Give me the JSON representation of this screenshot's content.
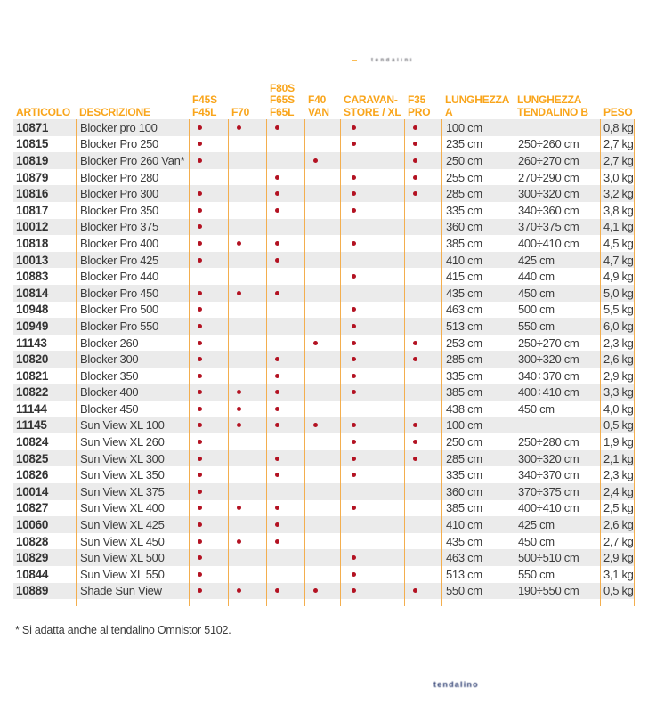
{
  "colors": {
    "accent": "#F9A51B",
    "border": "#F3AE4E",
    "dot": "#B31222",
    "row_alt": "#EBEBEB",
    "text": "#3B3B3B"
  },
  "page": {
    "top_note": {
      "text": "tendalini"
    },
    "bottom_note": {
      "text": "tendalino"
    },
    "footnote": "* Si adatta anche al tendalino Omnistor 5102."
  },
  "table": {
    "columns": [
      {
        "id": "articolo",
        "label_lines": [
          "ARTICOLO"
        ]
      },
      {
        "id": "descrizione",
        "label_lines": [
          "DESCRIZIONE"
        ]
      },
      {
        "id": "f45s-f45l",
        "label_lines": [
          "F45S",
          "F45L"
        ]
      },
      {
        "id": "f70",
        "label_lines": [
          "F70"
        ]
      },
      {
        "id": "f80s-f65s-f65l",
        "label_lines": [
          "F80S",
          "F65S",
          "F65L"
        ]
      },
      {
        "id": "f40-van",
        "label_lines": [
          "F40",
          "VAN"
        ]
      },
      {
        "id": "caravanstore-xl",
        "label_lines": [
          "CARAVAN-",
          "STORE / XL"
        ]
      },
      {
        "id": "f35-pro",
        "label_lines": [
          "F35",
          "PRO"
        ]
      },
      {
        "id": "lunghezza-a",
        "label_lines": [
          "LUNGHEZZA",
          "A"
        ]
      },
      {
        "id": "lunghezza-tendalino-b",
        "label_lines": [
          "LUNGHEZZA",
          "TENDALINO B"
        ]
      },
      {
        "id": "peso",
        "label_lines": [
          "PESO"
        ]
      }
    ],
    "dot_column_ids": [
      "f45s-f45l",
      "f70",
      "f80s-f65s-f65l",
      "f40-van",
      "caravanstore-xl",
      "f35-pro"
    ],
    "rows": [
      {
        "articolo": "10871",
        "descrizione": "Blocker pro 100",
        "dots": [
          1,
          1,
          1,
          0,
          1,
          1
        ],
        "lunghezza_a": "100 cm",
        "lunghezza_b": "",
        "peso": "0,8 kg"
      },
      {
        "articolo": "10815",
        "descrizione": "Blocker Pro 250",
        "dots": [
          1,
          0,
          0,
          0,
          1,
          1
        ],
        "lunghezza_a": "235 cm",
        "lunghezza_b": "250÷260 cm",
        "peso": "2,7 kg"
      },
      {
        "articolo": "10819",
        "descrizione": "Blocker Pro 260 Van*",
        "dots": [
          1,
          0,
          0,
          1,
          0,
          1
        ],
        "lunghezza_a": "250 cm",
        "lunghezza_b": "260÷270 cm",
        "peso": "2,7 kg"
      },
      {
        "articolo": "10879",
        "descrizione": "Blocker Pro 280",
        "dots": [
          0,
          0,
          1,
          0,
          1,
          1
        ],
        "lunghezza_a": "255 cm",
        "lunghezza_b": "270÷290 cm",
        "peso": "3,0 kg"
      },
      {
        "articolo": "10816",
        "descrizione": "Blocker Pro 300",
        "dots": [
          1,
          0,
          1,
          0,
          1,
          1
        ],
        "lunghezza_a": "285 cm",
        "lunghezza_b": "300÷320 cm",
        "peso": "3,2 kg"
      },
      {
        "articolo": "10817",
        "descrizione": "Blocker Pro 350",
        "dots": [
          1,
          0,
          1,
          0,
          1,
          0
        ],
        "lunghezza_a": "335 cm",
        "lunghezza_b": "340÷360 cm",
        "peso": "3,8 kg"
      },
      {
        "articolo": "10012",
        "descrizione": "Blocker Pro 375",
        "dots": [
          1,
          0,
          0,
          0,
          0,
          0
        ],
        "lunghezza_a": "360 cm",
        "lunghezza_b": "370÷375 cm",
        "peso": "4,1 kg"
      },
      {
        "articolo": "10818",
        "descrizione": "Blocker Pro 400",
        "dots": [
          1,
          1,
          1,
          0,
          1,
          0
        ],
        "lunghezza_a": "385 cm",
        "lunghezza_b": "400÷410 cm",
        "peso": "4,5 kg"
      },
      {
        "articolo": "10013",
        "descrizione": "Blocker Pro 425",
        "dots": [
          1,
          0,
          1,
          0,
          0,
          0
        ],
        "lunghezza_a": "410 cm",
        "lunghezza_b": "425 cm",
        "peso": "4,7 kg"
      },
      {
        "articolo": "10883",
        "descrizione": "Blocker Pro 440",
        "dots": [
          0,
          0,
          0,
          0,
          1,
          0
        ],
        "lunghezza_a": "415 cm",
        "lunghezza_b": "440 cm",
        "peso": "4,9 kg"
      },
      {
        "articolo": "10814",
        "descrizione": "Blocker Pro 450",
        "dots": [
          1,
          1,
          1,
          0,
          0,
          0
        ],
        "lunghezza_a": "435 cm",
        "lunghezza_b": "450 cm",
        "peso": "5,0 kg"
      },
      {
        "articolo": "10948",
        "descrizione": "Blocker Pro 500",
        "dots": [
          1,
          0,
          0,
          0,
          1,
          0
        ],
        "lunghezza_a": "463 cm",
        "lunghezza_b": "500 cm",
        "peso": "5,5 kg"
      },
      {
        "articolo": "10949",
        "descrizione": "Blocker Pro 550",
        "dots": [
          1,
          0,
          0,
          0,
          1,
          0
        ],
        "lunghezza_a": "513 cm",
        "lunghezza_b": "550 cm",
        "peso": "6,0 kg"
      },
      {
        "articolo": "11143",
        "descrizione": "Blocker 260",
        "dots": [
          1,
          0,
          0,
          1,
          1,
          1
        ],
        "lunghezza_a": "253 cm",
        "lunghezza_b": "250÷270 cm",
        "peso": "2,3 kg"
      },
      {
        "articolo": "10820",
        "descrizione": "Blocker 300",
        "dots": [
          1,
          0,
          1,
          0,
          1,
          1
        ],
        "lunghezza_a": "285 cm",
        "lunghezza_b": "300÷320 cm",
        "peso": "2,6 kg"
      },
      {
        "articolo": "10821",
        "descrizione": "Blocker 350",
        "dots": [
          1,
          0,
          1,
          0,
          1,
          0
        ],
        "lunghezza_a": "335 cm",
        "lunghezza_b": "340÷370 cm",
        "peso": "2,9 kg"
      },
      {
        "articolo": "10822",
        "descrizione": "Blocker 400",
        "dots": [
          1,
          1,
          1,
          0,
          1,
          0
        ],
        "lunghezza_a": "385 cm",
        "lunghezza_b": "400÷410 cm",
        "peso": "3,3 kg"
      },
      {
        "articolo": "11144",
        "descrizione": "Blocker 450",
        "dots": [
          1,
          1,
          1,
          0,
          0,
          0
        ],
        "lunghezza_a": "438 cm",
        "lunghezza_b": "450 cm",
        "peso": "4,0 kg"
      },
      {
        "articolo": "11145",
        "descrizione": "Sun View XL 100",
        "dots": [
          1,
          1,
          1,
          1,
          1,
          1
        ],
        "lunghezza_a": "100 cm",
        "lunghezza_b": "",
        "peso": "0,5 kg"
      },
      {
        "articolo": "10824",
        "descrizione": "Sun View XL 260",
        "dots": [
          1,
          0,
          0,
          0,
          1,
          1
        ],
        "lunghezza_a": "250 cm",
        "lunghezza_b": "250÷280 cm",
        "peso": "1,9 kg"
      },
      {
        "articolo": "10825",
        "descrizione": "Sun View XL 300",
        "dots": [
          1,
          0,
          1,
          0,
          1,
          1
        ],
        "lunghezza_a": "285 cm",
        "lunghezza_b": "300÷320 cm",
        "peso": "2,1 kg"
      },
      {
        "articolo": "10826",
        "descrizione": "Sun View XL 350",
        "dots": [
          1,
          0,
          1,
          0,
          1,
          0
        ],
        "lunghezza_a": "335 cm",
        "lunghezza_b": "340÷370 cm",
        "peso": "2,3 kg"
      },
      {
        "articolo": "10014",
        "descrizione": "Sun View XL 375",
        "dots": [
          1,
          0,
          0,
          0,
          0,
          0
        ],
        "lunghezza_a": "360 cm",
        "lunghezza_b": "370÷375 cm",
        "peso": "2,4 kg"
      },
      {
        "articolo": "10827",
        "descrizione": "Sun View XL 400",
        "dots": [
          1,
          1,
          1,
          0,
          1,
          0
        ],
        "lunghezza_a": "385 cm",
        "lunghezza_b": "400÷410 cm",
        "peso": "2,5 kg"
      },
      {
        "articolo": "10060",
        "descrizione": "Sun View XL 425",
        "dots": [
          1,
          0,
          1,
          0,
          0,
          0
        ],
        "lunghezza_a": "410 cm",
        "lunghezza_b": "425 cm",
        "peso": "2,6 kg"
      },
      {
        "articolo": "10828",
        "descrizione": "Sun View XL 450",
        "dots": [
          1,
          1,
          1,
          0,
          0,
          0
        ],
        "lunghezza_a": "435 cm",
        "lunghezza_b": "450 cm",
        "peso": "2,7 kg"
      },
      {
        "articolo": "10829",
        "descrizione": "Sun View XL 500",
        "dots": [
          1,
          0,
          0,
          0,
          1,
          0
        ],
        "lunghezza_a": "463 cm",
        "lunghezza_b": "500÷510 cm",
        "peso": "2,9 kg"
      },
      {
        "articolo": "10844",
        "descrizione": "Sun View XL 550",
        "dots": [
          1,
          0,
          0,
          0,
          1,
          0
        ],
        "lunghezza_a": "513 cm",
        "lunghezza_b": "550 cm",
        "peso": "3,1 kg"
      },
      {
        "articolo": "10889",
        "descrizione": "Shade Sun View",
        "dots": [
          1,
          1,
          1,
          1,
          1,
          1
        ],
        "lunghezza_a": "550 cm",
        "lunghezza_b": "190÷550 cm",
        "peso": "0,5 kg"
      }
    ]
  }
}
